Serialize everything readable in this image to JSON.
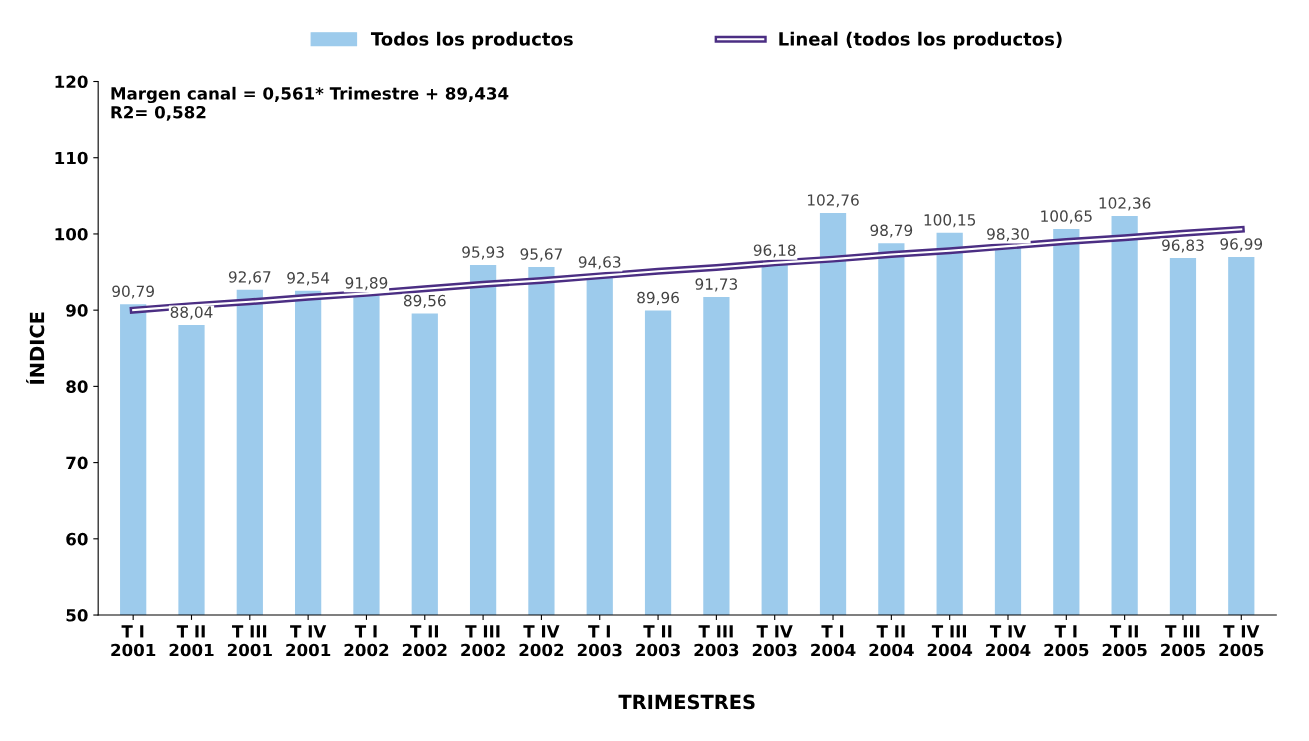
{
  "chart_data": {
    "type": "bar",
    "xlabel": "TRIMESTRES",
    "ylabel": "ÍNDICE",
    "categories": [
      "T I\n2001",
      "T II\n2001",
      "T III\n2001",
      "T IV\n2001",
      "T I\n2002",
      "T II\n2002",
      "T III\n2002",
      "T IV\n2002",
      "T I\n2003",
      "T II\n2003",
      "T III\n2003",
      "T IV\n2003",
      "T I\n2004",
      "T II\n2004",
      "T III\n2004",
      "T IV\n2004",
      "T I\n2005",
      "T II\n2005",
      "T III\n2005",
      "T IV\n2005"
    ],
    "series": [
      {
        "name": "Todos los productos",
        "color": "#9dcbec",
        "values": [
          90.79,
          88.04,
          92.67,
          92.54,
          91.89,
          89.56,
          95.93,
          95.67,
          94.63,
          89.96,
          91.73,
          96.18,
          102.76,
          98.79,
          100.15,
          98.3,
          100.65,
          102.36,
          96.83,
          96.99
        ],
        "value_labels": [
          "90,79",
          "88,04",
          "92,67",
          "92,54",
          "91,89",
          "89,56",
          "95,93",
          "95,67",
          "94,63",
          "89,96",
          "91,73",
          "96,18",
          "102,76",
          "98,79",
          "100,15",
          "98,30",
          "100,65",
          "102,36",
          "96,83",
          "96,99"
        ]
      },
      {
        "name": "Lineal (todos los productos)",
        "type": "line",
        "color": "#4b2e83",
        "values": [
          90.0,
          90.6,
          91.1,
          91.7,
          92.2,
          92.8,
          93.4,
          93.9,
          94.5,
          95.1,
          95.6,
          96.2,
          96.7,
          97.3,
          97.8,
          98.4,
          99.0,
          99.5,
          100.1,
          100.6
        ]
      }
    ],
    "ylim": [
      50,
      120
    ],
    "yticks": [
      50,
      60,
      70,
      80,
      90,
      100,
      110,
      120
    ],
    "grid": false,
    "legend": "top",
    "marker": "none",
    "line_style": "solid",
    "annotations": [
      "Margen canal = 0,561* Trimestre + 89,434\nR2= 0,582"
    ]
  }
}
